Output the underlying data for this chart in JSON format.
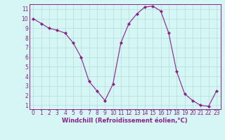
{
  "x": [
    0,
    1,
    2,
    3,
    4,
    5,
    6,
    7,
    8,
    9,
    10,
    11,
    12,
    13,
    14,
    15,
    16,
    17,
    18,
    19,
    20,
    21,
    22,
    23
  ],
  "y": [
    10.0,
    9.5,
    9.0,
    8.8,
    8.5,
    7.5,
    6.0,
    3.5,
    2.5,
    1.5,
    3.2,
    7.5,
    9.5,
    10.5,
    11.2,
    11.3,
    10.8,
    8.5,
    4.5,
    2.2,
    1.5,
    1.0,
    0.9,
    2.5
  ],
  "line_color": "#882288",
  "marker": "D",
  "marker_size": 2.0,
  "bg_color": "#d6f5f5",
  "grid_color": "#b0dede",
  "xlabel": "Windchill (Refroidissement éolien,°C)",
  "xlim_min": -0.5,
  "xlim_max": 23.5,
  "ylim_min": 0.6,
  "ylim_max": 11.5,
  "xticks": [
    0,
    1,
    2,
    3,
    4,
    5,
    6,
    7,
    8,
    9,
    10,
    11,
    12,
    13,
    14,
    15,
    16,
    17,
    18,
    19,
    20,
    21,
    22,
    23
  ],
  "yticks": [
    1,
    2,
    3,
    4,
    5,
    6,
    7,
    8,
    9,
    10,
    11
  ],
  "label_color": "#882288",
  "tick_labelsize": 5.5,
  "xlabel_fontsize": 6.0
}
